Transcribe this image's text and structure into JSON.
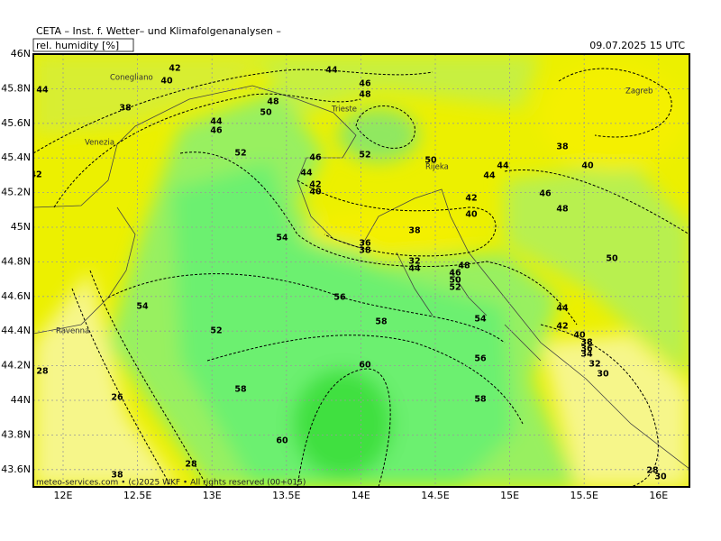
{
  "header": {
    "title": "CETA  –  Inst. f. Wetter–  und Klimafolgenanalysen  –",
    "parameter": "rel. humidity [%]",
    "valid_time": "09.07.2025  15 UTC"
  },
  "footer": "meteo-services.com  •  (c)2025 WKF  •  All rights reserved  (00+015)",
  "axes": {
    "lon_labels": [
      "12E",
      "12.5E",
      "13E",
      "13.5E",
      "14E",
      "14.5E",
      "15E",
      "15.5E",
      "16E"
    ],
    "lat_labels": [
      "46N",
      "45.8N",
      "45.6N",
      "45.4N",
      "45.2N",
      "45N",
      "44.8N",
      "44.6N",
      "44.4N",
      "44.2N",
      "44N",
      "43.8N",
      "43.6N"
    ]
  },
  "cities": [
    "Conegliano",
    "Venezia",
    "Trieste",
    "Rijeka",
    "Zagreb",
    "Ravenna"
  ],
  "contour_labels": [
    "42",
    "40",
    "44",
    "38",
    "44",
    "46",
    "48",
    "50",
    "52",
    "44",
    "46",
    "48",
    "52",
    "50",
    "44",
    "42",
    "40",
    "46",
    "54",
    "38",
    "36",
    "38",
    "32",
    "44",
    "48",
    "46",
    "50",
    "52",
    "42",
    "40",
    "44",
    "44",
    "46",
    "48",
    "40",
    "38",
    "50",
    "44",
    "42",
    "40",
    "38",
    "36",
    "34",
    "32",
    "30",
    "54",
    "56",
    "58",
    "56",
    "58",
    "60",
    "52",
    "54",
    "58",
    "60",
    "28",
    "26",
    "28",
    "38",
    "42",
    "28",
    "30"
  ]
}
